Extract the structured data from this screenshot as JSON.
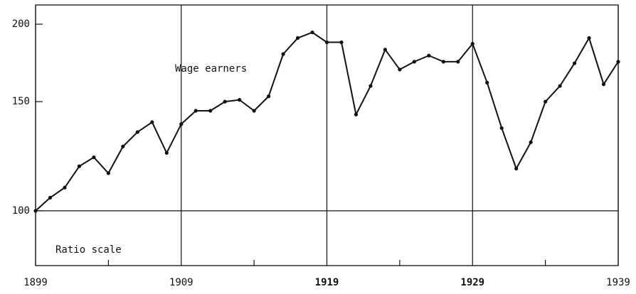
{
  "chart_data": {
    "type": "line",
    "annotations": [
      "Wage earners",
      "Ratio scale"
    ],
    "x": [
      1899,
      1900,
      1901,
      1902,
      1903,
      1904,
      1905,
      1906,
      1907,
      1908,
      1909,
      1910,
      1911,
      1912,
      1913,
      1914,
      1915,
      1916,
      1917,
      1918,
      1919,
      1920,
      1921,
      1922,
      1923,
      1924,
      1925,
      1926,
      1927,
      1928,
      1929,
      1930,
      1931,
      1932,
      1933,
      1934,
      1935,
      1936,
      1937,
      1938,
      1939
    ],
    "series": [
      {
        "name": "Wage earners",
        "color": "#111111",
        "values": [
          100,
          105,
          109,
          118,
          122,
          115,
          127,
          134,
          139,
          124,
          138,
          145,
          145,
          150,
          151,
          145,
          153,
          179,
          190,
          194,
          187,
          187,
          143,
          159,
          182,
          169,
          174,
          178,
          174,
          174,
          186,
          161,
          136,
          117,
          129,
          150,
          159,
          173,
          190,
          160,
          174
        ]
      }
    ],
    "xlim": [
      1899,
      1939
    ],
    "xticks": [
      1899,
      1909,
      1919,
      1929,
      1939
    ],
    "xminor_ticks": [
      1904,
      1914,
      1924,
      1934
    ],
    "ylim": [
      81.6,
      214.8
    ],
    "yticks": [
      100,
      150,
      200
    ],
    "log_y": true,
    "hlines": [
      100
    ]
  }
}
